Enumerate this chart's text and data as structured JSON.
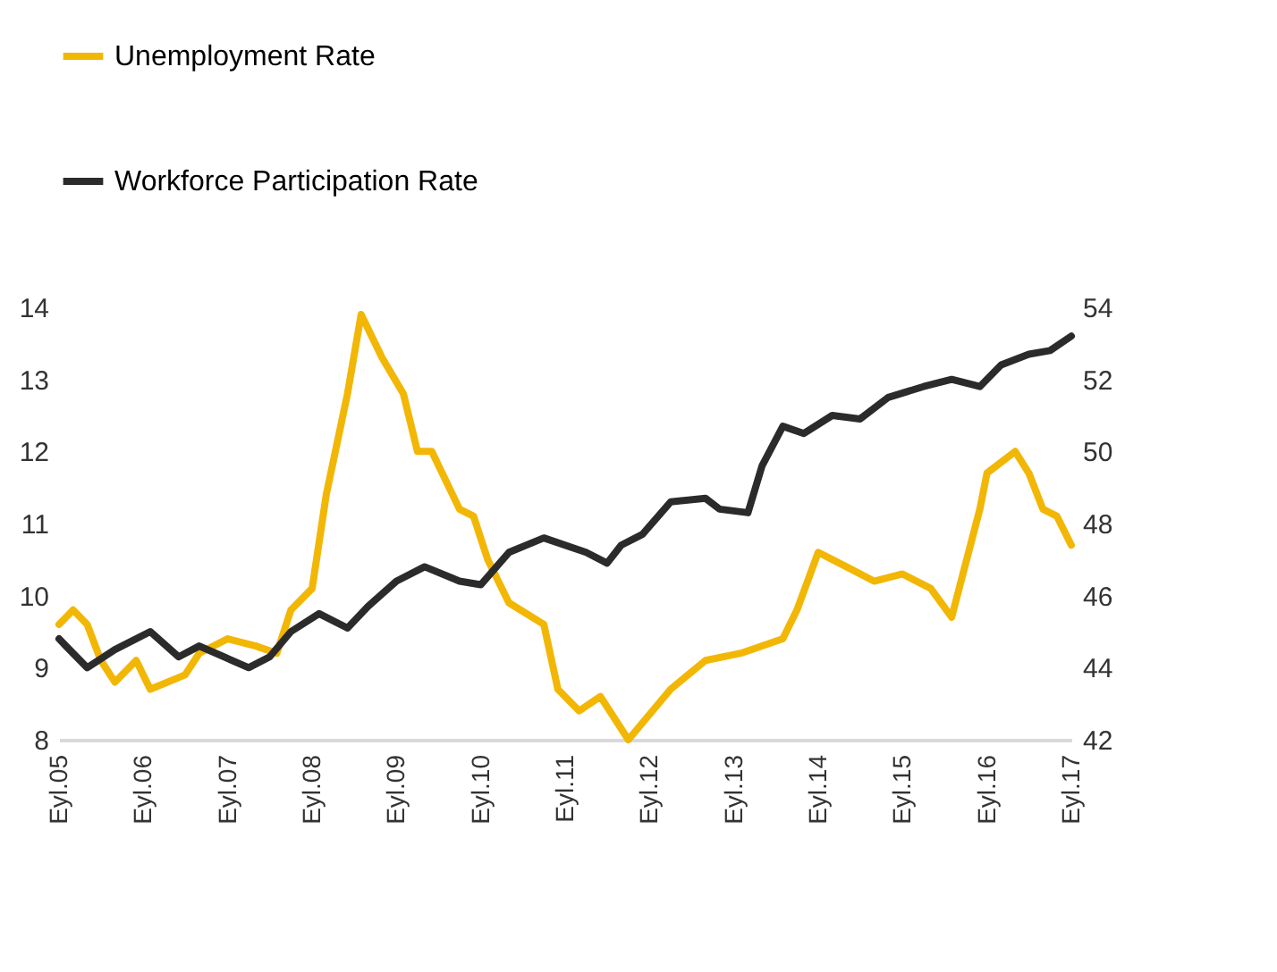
{
  "chart_data": {
    "type": "line",
    "legend": "top left",
    "grid": false,
    "marker": "none",
    "line_style": "solid",
    "xlim": [
      "2005-09",
      "2017-09"
    ],
    "xticks": [
      {
        "value": "2005-09",
        "label": "Eyl.05"
      },
      {
        "value": "2006-09",
        "label": "Eyl.06"
      },
      {
        "value": "2007-09",
        "label": "Eyl.07"
      },
      {
        "value": "2008-09",
        "label": "Eyl.08"
      },
      {
        "value": "2009-09",
        "label": "Eyl.09"
      },
      {
        "value": "2010-09",
        "label": "Eyl.10"
      },
      {
        "value": "2011-09",
        "label": "Eyl.11"
      },
      {
        "value": "2012-09",
        "label": "Eyl.12"
      },
      {
        "value": "2013-09",
        "label": "Eyl.13"
      },
      {
        "value": "2014-09",
        "label": "Eyl.14"
      },
      {
        "value": "2015-09",
        "label": "Eyl.15"
      },
      {
        "value": "2016-09",
        "label": "Eyl.16"
      },
      {
        "value": "2017-09",
        "label": "Eyl.17"
      }
    ],
    "ylim": [
      8,
      14
    ],
    "yticks": [
      8,
      9,
      10,
      11,
      12,
      13,
      14
    ],
    "y2lim": [
      42,
      54
    ],
    "y2ticks": [
      42,
      44,
      46,
      48,
      50,
      52,
      54
    ],
    "series": [
      {
        "name": "Unemployment Rate",
        "color": "#f2b705",
        "x": [
          "2005-09",
          "2005-11",
          "2006-01",
          "2006-03",
          "2006-05",
          "2006-08",
          "2006-10",
          "2007-03",
          "2007-05",
          "2007-09",
          "2008-01",
          "2008-04",
          "2008-06",
          "2008-09",
          "2008-11",
          "2009-02",
          "2009-04",
          "2009-07",
          "2009-10",
          "2009-12",
          "2010-02",
          "2010-06",
          "2010-08",
          "2010-10",
          "2011-01",
          "2011-06",
          "2011-08",
          "2011-11",
          "2012-02",
          "2012-06",
          "2012-12",
          "2013-05",
          "2013-10",
          "2014-04",
          "2014-06",
          "2014-09",
          "2015-01",
          "2015-05",
          "2015-09",
          "2016-01",
          "2016-04",
          "2016-08",
          "2016-09",
          "2017-01",
          "2017-03",
          "2017-05",
          "2017-07",
          "2017-09"
        ],
        "values": [
          9.6,
          9.8,
          9.6,
          9.1,
          8.8,
          9.1,
          8.7,
          8.9,
          9.2,
          9.4,
          9.3,
          9.2,
          9.8,
          10.1,
          11.4,
          12.8,
          13.9,
          13.3,
          12.8,
          12.0,
          12.0,
          11.2,
          11.1,
          10.5,
          9.9,
          9.6,
          8.7,
          8.4,
          8.6,
          8.0,
          8.7,
          9.1,
          9.2,
          9.4,
          9.8,
          10.6,
          10.4,
          10.2,
          10.3,
          10.1,
          9.7,
          11.2,
          11.7,
          12.0,
          11.7,
          11.2,
          11.1,
          10.7
        ]
      },
      {
        "name": "Workforce Participation Rate",
        "color": "#2b2b2b",
        "axis": "y2",
        "x": [
          "2005-09",
          "2005-10",
          "2006-01",
          "2006-05",
          "2006-10",
          "2007-02",
          "2007-05",
          "2007-12",
          "2008-03",
          "2008-06",
          "2008-10",
          "2009-02",
          "2009-05",
          "2009-09",
          "2010-01",
          "2010-06",
          "2010-09",
          "2011-01",
          "2011-06",
          "2011-12",
          "2012-03",
          "2012-05",
          "2012-08",
          "2012-12",
          "2013-05",
          "2013-07",
          "2013-11",
          "2014-01",
          "2014-04",
          "2014-07",
          "2014-11",
          "2015-03",
          "2015-07",
          "2015-12",
          "2016-04",
          "2016-08",
          "2016-11",
          "2017-03",
          "2017-06",
          "2017-09"
        ],
        "values": [
          44.8,
          44.6,
          44.0,
          44.5,
          45.0,
          44.3,
          44.6,
          44.0,
          44.3,
          45.0,
          45.5,
          45.1,
          45.7,
          46.4,
          46.8,
          46.4,
          46.3,
          47.2,
          47.6,
          47.2,
          46.9,
          47.4,
          47.7,
          48.6,
          48.7,
          48.4,
          48.3,
          49.6,
          50.7,
          50.5,
          51.0,
          50.9,
          51.5,
          51.8,
          52.0,
          51.8,
          52.4,
          52.7,
          52.8,
          53.2
        ]
      }
    ]
  }
}
